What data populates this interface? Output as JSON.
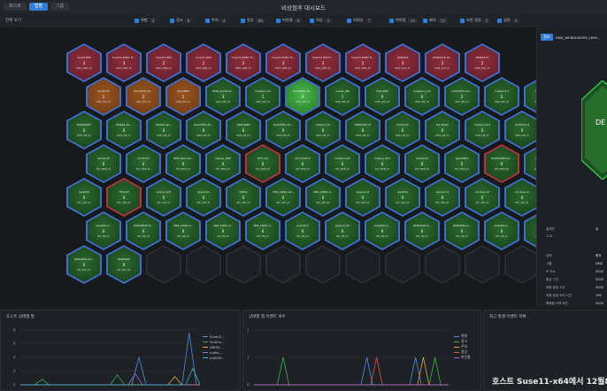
{
  "window": {
    "title": "비상점후 대시보드",
    "tabs": [
      "호스트",
      "앱별",
      "그룹"
    ],
    "active_tab": 1
  },
  "filters": {
    "label": "전체 보기",
    "items": [
      {
        "label": "위험",
        "value": "2"
      },
      {
        "label": "경고",
        "value": "6"
      },
      {
        "label": "주의",
        "value": "3"
      },
      {
        "label": "정상",
        "value": "80"
      },
      {
        "label": "미연결",
        "value": "0"
      },
      {
        "label": "의심",
        "value": "1"
      },
      {
        "label": "비정상",
        "value": "7"
      },
      {
        "label": "취약점",
        "value": "14"
      },
      {
        "label": "패치",
        "value": "15"
      },
      {
        "label": "보안 점검",
        "value": "2"
      },
      {
        "label": "설정",
        "value": "3"
      }
    ]
  },
  "hex_grid": {
    "rows": [
      {
        "offset": 75,
        "cells": [
          {
            "name": "SuseT-WM",
            "count": "3",
            "sub": "DMZ_WEB_02",
            "status": "critical"
          },
          {
            "name": "SuseT1-WIN7 Fr...",
            "count": "3",
            "sub": "DMZ_WEB_03",
            "status": "critical"
          },
          {
            "name": "SuseT1-WM",
            "count": "2",
            "sub": "DMZ_WEB_02",
            "status": "critical"
          },
          {
            "name": "SuseT1-WM",
            "count": "2",
            "sub": "DMZ_WEB_04",
            "status": "critical"
          },
          {
            "name": "SuseT1-WIN7 Fr...",
            "count": "3",
            "sub": "DMZ_WEB_03",
            "status": "critical"
          },
          {
            "name": "SuseT1-WIN7 Fr...",
            "count": "3",
            "sub": "DMZ_WEB_02",
            "status": "critical"
          },
          {
            "name": "SuseT1-WM Fr...",
            "count": "3",
            "sub": "DMZ_WEB_01",
            "status": "critical"
          },
          {
            "name": "SuseT1-WIN7 Fr...",
            "count": "2",
            "sub": "DMZ_WEB_03",
            "status": "critical"
          },
          {
            "name": "DMZ404",
            "count": "3",
            "sub": "DMZ_SVR_02",
            "status": "critical"
          },
          {
            "name": "DMZ0279 Dt...",
            "count": "2",
            "sub": "DMZ_SVR_01",
            "status": "critical"
          },
          {
            "name": "DMZ0279",
            "count": "2",
            "sub": "DMZ_SVR_03",
            "status": "critical"
          }
        ]
      },
      {
        "offset": 97,
        "cells": [
          {
            "name": "ibm5103",
            "count": "2",
            "sub": "DMZ_ETC_02",
            "status": "warning"
          },
          {
            "name": "QAzCM50-Ab...",
            "count": "2",
            "sub": "DMZ_ETC_01",
            "status": "warning"
          },
          {
            "name": "QAzCM50",
            "count": "2",
            "sub": "DMZ_ETC_01",
            "status": "warning"
          },
          {
            "name": "DMZ_SuseT-lis...",
            "count": "3",
            "sub": "DMZ_APP_02",
            "status": "normal"
          },
          {
            "name": "mailser-t-bo",
            "count": "1",
            "sub": "DMZ_APP_01",
            "status": "normal"
          },
          {
            "name": "QAzCM50-Ab...",
            "count": "0",
            "sub": "DMZ_APP_01",
            "status": "normal-bright"
          },
          {
            "name": "mailsv_BB",
            "count": "1",
            "sub": "DMZ_APP_02",
            "status": "normal"
          },
          {
            "name": "SUS-AMIP",
            "count": "0",
            "sub": "DMZ_APP_01",
            "status": "normal"
          },
          {
            "name": "mailserv_hok",
            "count": "0",
            "sub": "DMZ_APP_02",
            "status": "normal"
          },
          {
            "name": "QAzCM50-Am...",
            "count": "2",
            "sub": "DMZ_APP_01",
            "status": "normal"
          },
          {
            "name": "mailser-t-7",
            "count": "2",
            "sub": "DMZ_APP_02",
            "status": "normal"
          },
          {
            "name": "QAzCM50",
            "count": "2",
            "sub": "DMZ_APP_01",
            "status": "normal"
          }
        ]
      },
      {
        "offset": 75,
        "cells": [
          {
            "name": "DMZ0296T",
            "count": "0",
            "sub": "DMZ_DB_02",
            "status": "normal"
          },
          {
            "name": "DMZ44-Ab...",
            "count": "0",
            "sub": "DMZ_DB_01",
            "status": "normal"
          },
          {
            "name": "DMZ44-Ab...",
            "count": "0",
            "sub": "DMZ_DB_01",
            "status": "normal"
          },
          {
            "name": "QAzCM50-Ab...",
            "count": "0",
            "sub": "DMZ_DB_02",
            "status": "normal"
          },
          {
            "name": "WNS-WEB",
            "count": "0",
            "sub": "DMZ_DB_01",
            "status": "normal"
          },
          {
            "name": "QAzCM50-Ab...",
            "count": "0",
            "sub": "DMZ_DB_02",
            "status": "normal"
          },
          {
            "name": "mailsvr_02",
            "count": "0",
            "sub": "DMZ_DB_01",
            "status": "normal"
          },
          {
            "name": "DMZ0296_Pr",
            "count": "0",
            "sub": "DMZ_DB_02",
            "status": "normal"
          },
          {
            "name": "ibm5103",
            "count": "0",
            "sub": "DMZ_DB_01",
            "status": "normal"
          },
          {
            "name": "ibm-B(96)",
            "count": "0",
            "sub": "DMZ_DB_01",
            "status": "normal"
          },
          {
            "name": "mailsvr_SST",
            "count": "0",
            "sub": "DMZ_DB_02",
            "status": "normal"
          },
          {
            "name": "ibm5103-9",
            "count": "0",
            "sub": "DMZ_DB_01",
            "status": "normal"
          }
        ]
      },
      {
        "offset": 97,
        "cells": [
          {
            "name": "ibm5103",
            "count": "0",
            "sub": "INT_WEB_01",
            "status": "normal"
          },
          {
            "name": "ibm5103",
            "count": "0",
            "sub": "INT_WEB_02",
            "status": "normal"
          },
          {
            "name": "DMZ-JSS2-CR...",
            "count": "0",
            "sub": "INT_WEB_01",
            "status": "normal"
          },
          {
            "name": "mailsvr_EBH",
            "count": "0",
            "sub": "INT_WEB_01",
            "status": "normal"
          },
          {
            "name": "RFC+20",
            "count": "0",
            "sub": "INT_WEB_02",
            "status": "warn-edge"
          },
          {
            "name": "ibm-5103-9",
            "count": "0",
            "sub": "INT_WEB_01",
            "status": "normal"
          },
          {
            "name": "mailsvr-a42",
            "count": "0",
            "sub": "INT_WEB_02",
            "status": "normal"
          },
          {
            "name": "mailsvr_SST",
            "count": "0",
            "sub": "INT_WEB_01",
            "status": "normal"
          },
          {
            "name": "ibm5103",
            "count": "0",
            "sub": "INT_WEB_02",
            "status": "normal"
          },
          {
            "name": "QAzCM50",
            "count": "0",
            "sub": "INT_WEB_01",
            "status": "normal"
          },
          {
            "name": "DMZ0296T-Ab...",
            "count": "0",
            "sub": "INT_WEB_02",
            "status": "warn-edge"
          },
          {
            "name": "INT_FSNS",
            "count": "0",
            "sub": "INT_WEB_01",
            "status": "normal"
          }
        ]
      },
      {
        "offset": 75,
        "cells": [
          {
            "name": "ipa1000",
            "count": "0",
            "sub": "INT_APP_01",
            "status": "normal"
          },
          {
            "name": "TP5020",
            "count": "0",
            "sub": "INT_APP_02",
            "status": "warn-edge"
          },
          {
            "name": "appsvr-x03",
            "count": "0",
            "sub": "INT_APP_01",
            "status": "normal"
          },
          {
            "name": "appsvr01",
            "count": "0",
            "sub": "INT_APP_01",
            "status": "normal"
          },
          {
            "name": "APP01",
            "count": "0",
            "sub": "INT_APP_02",
            "status": "normal"
          },
          {
            "name": "DMZ_LINK1-Ab...",
            "count": "0",
            "sub": "INT_APP_01",
            "status": "normal"
          },
          {
            "name": "DMZ_LINK1-S...",
            "count": "0",
            "sub": "INT_APP_02",
            "status": "normal"
          },
          {
            "name": "appsvr-x1",
            "count": "0",
            "sub": "INT_APP_01",
            "status": "normal"
          },
          {
            "name": "ipa1000",
            "count": "0",
            "sub": "INT_APP_02",
            "status": "normal"
          },
          {
            "name": "appsvr-x1",
            "count": "0",
            "sub": "INT_APP_01",
            "status": "normal"
          },
          {
            "name": "vm-Sus-10",
            "count": "0",
            "sub": "INT_APP_02",
            "status": "normal"
          },
          {
            "name": "vm-Sus-11",
            "count": "0",
            "sub": "INT_APP_01",
            "status": "normal"
          }
        ]
      },
      {
        "offset": 97,
        "cells": [
          {
            "name": "ipa1000-A...",
            "count": "0",
            "sub": "INT_DB_01",
            "status": "normal"
          },
          {
            "name": "IPRESERVE B...",
            "count": "0",
            "sub": "INT_DB_02",
            "status": "normal"
          },
          {
            "name": "DMZ_LINK1-S...",
            "count": "0",
            "sub": "INT_DB_01",
            "status": "normal"
          },
          {
            "name": "DMZ_LINK1-S...",
            "count": "0",
            "sub": "INT_DB_02",
            "status": "normal"
          },
          {
            "name": "DMZ_LINK1-S...",
            "count": "0",
            "sub": "INT_DB_01",
            "status": "normal"
          },
          {
            "name": "ipa100-2",
            "count": "0",
            "sub": "INT_DB_02",
            "status": "normal"
          },
          {
            "name": "appsvr-x11",
            "count": "0",
            "sub": "INT_DB_01",
            "status": "normal"
          },
          {
            "name": "ipa1000-G...",
            "count": "0",
            "sub": "INT_DB_02",
            "status": "normal"
          },
          {
            "name": "DMZ4100-R...",
            "count": "0",
            "sub": "INT_DB_01",
            "status": "normal"
          },
          {
            "name": "DMZ0284-A...",
            "count": "0",
            "sub": "INT_DB_02",
            "status": "normal"
          },
          {
            "name": "ipa1000-A...",
            "count": "0",
            "sub": "INT_DB_01",
            "status": "normal"
          },
          {
            "name": "ipa1000",
            "count": "0",
            "sub": "INT_DB_02",
            "status": "normal"
          }
        ]
      },
      {
        "offset": 75,
        "cells": [
          {
            "name": "DMZ0200-Ab...",
            "count": "0",
            "sub": "INT_ETC_01",
            "status": "normal"
          },
          {
            "name": "DMZ0200",
            "count": "0",
            "sub": "INT_ETC_02",
            "status": "normal"
          },
          {
            "name": "",
            "count": "",
            "sub": "",
            "status": "empty"
          },
          {
            "name": "",
            "count": "",
            "sub": "",
            "status": "empty"
          },
          {
            "name": "",
            "count": "",
            "sub": "",
            "status": "empty"
          },
          {
            "name": "",
            "count": "",
            "sub": "",
            "status": "empty"
          },
          {
            "name": "",
            "count": "",
            "sub": "",
            "status": "empty"
          },
          {
            "name": "",
            "count": "",
            "sub": "",
            "status": "empty"
          },
          {
            "name": "",
            "count": "",
            "sub": "",
            "status": "empty"
          },
          {
            "name": "",
            "count": "",
            "sub": "",
            "status": "empty"
          },
          {
            "name": "",
            "count": "",
            "sub": "",
            "status": "empty"
          },
          {
            "name": "",
            "count": "",
            "sub": "",
            "status": "empty"
          }
        ]
      }
    ]
  },
  "pager": {
    "prev": "‹",
    "page": "1",
    "next": "›",
    "extra": "2"
  },
  "side_panel": {
    "badge": "정보",
    "host": "DMZ_WEBGUI0005_LENY...",
    "hex_label": "DE",
    "details": [
      {
        "key": "설계관",
        "value": "유"
      },
      {
        "key": "1.01",
        "value": ""
      },
      {
        "key": "상태",
        "value": "확저"
      },
      {
        "key": "그룹",
        "value": "DMZ"
      },
      {
        "key": "IP 주소",
        "value": "2020"
      },
      {
        "key": "활성 기간",
        "value": "2020"
      },
      {
        "key": "최종 발생 시간",
        "value": "2020"
      },
      {
        "key": "최종 발생 조치 시간",
        "value": "190"
      },
      {
        "key": "해제됨 이력 여건",
        "value": "2020"
      },
      {
        "key": "해제승 상태 여건",
        "value": ""
      }
    ]
  },
  "panels": {
    "left": {
      "title": "호스트 상태별 발",
      "legend": [
        "Suse11...",
        "Solaris...",
        "DMZ0...",
        "mdbs...",
        "m0000..."
      ],
      "y_ticks": [
        "8",
        "6",
        "4",
        "2",
        "0"
      ]
    },
    "mid": {
      "title": "상태별 앱 이벤트 개수",
      "legend": [
        "위험",
        "경고",
        "주의",
        "정상",
        "미연결"
      ],
      "y_ticks": [
        "2",
        "1",
        "0"
      ]
    },
    "right": {
      "title": "최근 발생 이벤트 목록"
    }
  },
  "banner": "호스트 Suse11-x64에서 12월8",
  "colors": {
    "critical": "#7a2430",
    "warning": "#8a4a1c",
    "normal": "#1f4d22",
    "accent": "#2f7fd6"
  }
}
